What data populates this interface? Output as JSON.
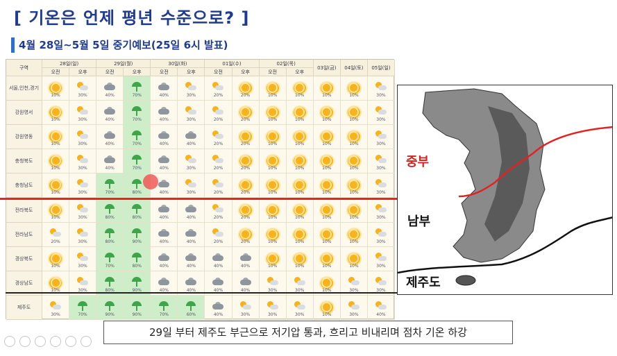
{
  "title": "[ 기온은 언제 평년 수준으로? ]",
  "subtitle": "4월 28일~5월 5일 중기예보(25일 6시 발표)",
  "table": {
    "corner": "구역",
    "days": [
      "28일(일)",
      "29일(월)",
      "30일(화)",
      "01일(수)",
      "02일(목)",
      "03일(금)",
      "04일(토)",
      "05일(일)"
    ],
    "am": "오전",
    "pm": "오후",
    "rows": [
      {
        "name": "서울,인천,경기",
        "cells": [
          [
            "sun",
            "10%"
          ],
          [
            "sunc",
            "30%"
          ],
          [
            "cloud",
            "40%"
          ],
          [
            "umb",
            "70%"
          ],
          [
            "cloud",
            "40%"
          ],
          [
            "sunc",
            "30%"
          ],
          [
            "sunc",
            "20%"
          ],
          [
            "sun",
            "20%"
          ],
          [
            "sun",
            "10%"
          ],
          [
            "sun",
            "10%"
          ],
          [
            "sun",
            "10%"
          ],
          [
            "sun",
            "10%"
          ],
          [
            "sunc",
            "30%"
          ]
        ]
      },
      {
        "name": "강원영서",
        "cells": [
          [
            "sun",
            "10%"
          ],
          [
            "sunc",
            "30%"
          ],
          [
            "cloud",
            "40%"
          ],
          [
            "umb",
            "70%"
          ],
          [
            "cloud",
            "40%"
          ],
          [
            "sunc",
            "30%"
          ],
          [
            "sunc",
            "20%"
          ],
          [
            "sun",
            "20%"
          ],
          [
            "sun",
            "10%"
          ],
          [
            "sun",
            "10%"
          ],
          [
            "sun",
            "10%"
          ],
          [
            "sun",
            "10%"
          ],
          [
            "sunc",
            "30%"
          ]
        ]
      },
      {
        "name": "강원영동",
        "cells": [
          [
            "sun",
            "10%"
          ],
          [
            "sunc",
            "30%"
          ],
          [
            "cloud",
            "40%"
          ],
          [
            "umb",
            "70%"
          ],
          [
            "cloud",
            "40%"
          ],
          [
            "cloud",
            "40%"
          ],
          [
            "sunc",
            "20%"
          ],
          [
            "sun",
            "20%"
          ],
          [
            "sun",
            "10%"
          ],
          [
            "sun",
            "10%"
          ],
          [
            "sun",
            "10%"
          ],
          [
            "sun",
            "10%"
          ],
          [
            "sunc",
            "30%"
          ]
        ]
      },
      {
        "name": "충청북도",
        "cells": [
          [
            "sun",
            "10%"
          ],
          [
            "sunc",
            "30%"
          ],
          [
            "cloud",
            "40%"
          ],
          [
            "umb",
            "70%"
          ],
          [
            "cloud",
            "40%"
          ],
          [
            "sunc",
            "30%"
          ],
          [
            "sunc",
            "20%"
          ],
          [
            "sun",
            "20%"
          ],
          [
            "sun",
            "10%"
          ],
          [
            "sun",
            "10%"
          ],
          [
            "sun",
            "10%"
          ],
          [
            "sun",
            "10%"
          ],
          [
            "sunc",
            "30%"
          ]
        ]
      },
      {
        "name": "충청남도",
        "cells": [
          [
            "sun",
            "10%"
          ],
          [
            "sunc",
            "30%"
          ],
          [
            "umb",
            "70%"
          ],
          [
            "umb",
            "80%"
          ],
          [
            "cloud",
            "40%"
          ],
          [
            "sunc",
            "30%"
          ],
          [
            "sunc",
            "20%"
          ],
          [
            "sun",
            "20%"
          ],
          [
            "sun",
            "10%"
          ],
          [
            "sun",
            "10%"
          ],
          [
            "sun",
            "10%"
          ],
          [
            "sun",
            "10%"
          ],
          [
            "sunc",
            "30%"
          ]
        ]
      },
      {
        "name": "전라북도",
        "cells": [
          [
            "sun",
            "10%"
          ],
          [
            "sunc",
            "30%"
          ],
          [
            "umb",
            "80%"
          ],
          [
            "umb",
            "80%"
          ],
          [
            "cloud",
            "40%"
          ],
          [
            "cloud",
            "40%"
          ],
          [
            "sunc",
            "20%"
          ],
          [
            "sun",
            "20%"
          ],
          [
            "sun",
            "10%"
          ],
          [
            "sun",
            "10%"
          ],
          [
            "sun",
            "10%"
          ],
          [
            "sun",
            "10%"
          ],
          [
            "sunc",
            "30%"
          ]
        ]
      },
      {
        "name": "전라남도",
        "cells": [
          [
            "sunc",
            "20%"
          ],
          [
            "sunc",
            "30%"
          ],
          [
            "umb",
            "80%"
          ],
          [
            "umb",
            "90%"
          ],
          [
            "cloud",
            "40%"
          ],
          [
            "cloud",
            "40%"
          ],
          [
            "sunc",
            "20%"
          ],
          [
            "sun",
            "20%"
          ],
          [
            "sun",
            "10%"
          ],
          [
            "sun",
            "10%"
          ],
          [
            "sun",
            "10%"
          ],
          [
            "sun",
            "10%"
          ],
          [
            "sunc",
            "30%"
          ]
        ]
      },
      {
        "name": "경상북도",
        "cells": [
          [
            "sun",
            "10%"
          ],
          [
            "sunc",
            "30%"
          ],
          [
            "umb",
            "70%"
          ],
          [
            "umb",
            "80%"
          ],
          [
            "cloud",
            "40%"
          ],
          [
            "cloud",
            "40%"
          ],
          [
            "cloud",
            "40%"
          ],
          [
            "cloud",
            "40%"
          ],
          [
            "sun",
            "10%"
          ],
          [
            "sun",
            "10%"
          ],
          [
            "sun",
            "10%"
          ],
          [
            "sun",
            "10%"
          ],
          [
            "sunc",
            "30%"
          ]
        ]
      },
      {
        "name": "경상남도",
        "cells": [
          [
            "sun",
            "10%"
          ],
          [
            "sunc",
            "30%"
          ],
          [
            "umb",
            "80%"
          ],
          [
            "umb",
            "90%"
          ],
          [
            "cloud",
            "40%"
          ],
          [
            "cloud",
            "40%"
          ],
          [
            "cloud",
            "40%"
          ],
          [
            "cloud",
            "40%"
          ],
          [
            "sunc",
            "30%"
          ],
          [
            "sunc",
            "30%"
          ],
          [
            "sun",
            "10%"
          ],
          [
            "sunc",
            "30%"
          ],
          [
            "sunc",
            "30%"
          ]
        ]
      },
      {
        "name": "제주도",
        "cells": [
          [
            "sunc",
            "30%"
          ],
          [
            "umb",
            "70%"
          ],
          [
            "umb",
            "90%"
          ],
          [
            "umb",
            "90%"
          ],
          [
            "umb",
            "70%"
          ],
          [
            "umb",
            "60%"
          ],
          [
            "cloud",
            "40%"
          ],
          [
            "sunc",
            "30%"
          ],
          [
            "sunc",
            "30%"
          ],
          [
            "sunc",
            "30%"
          ],
          [
            "sun",
            "10%"
          ],
          [
            "sunc",
            "30%"
          ],
          [
            "sunc",
            "40%"
          ]
        ]
      }
    ]
  },
  "map": {
    "label_jungbu": "중부",
    "label_nambu": "남부",
    "label_jeju": "제주도",
    "jungbu_color": "#d91f1f"
  },
  "caption": "29일 부터 제주도 부근으로 저기압 통과, 흐리고 비내리며 점차 기온 하강",
  "colors": {
    "accent": "#1f3b8f",
    "rain_cell": "#cdeec9",
    "front_line_red": "#e22222",
    "front_line_black": "#222222"
  },
  "icons": [
    "sun-icon",
    "sun-cloud-icon",
    "cloud-icon",
    "umbrella-icon"
  ]
}
